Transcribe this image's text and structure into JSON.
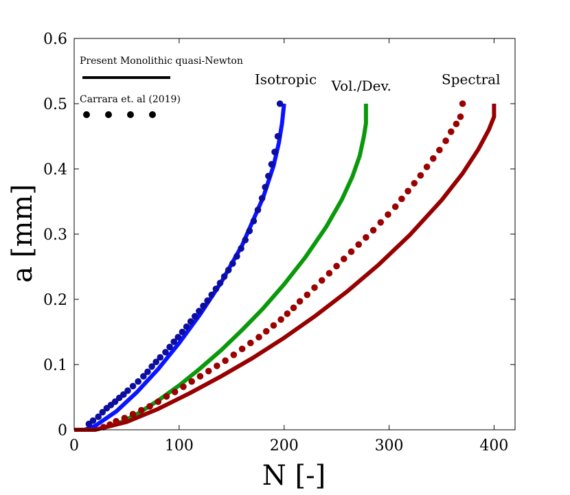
{
  "chart_data": {
    "type": "line",
    "title": "",
    "xlabel": "N [-]",
    "ylabel": "a [mm]",
    "xlim": [
      0,
      420
    ],
    "ylim": [
      0,
      0.6
    ],
    "x_ticks": [
      0,
      100,
      200,
      300,
      400
    ],
    "y_ticks": [
      0,
      0.1,
      0.2,
      0.3,
      0.4,
      0.5,
      0.6
    ],
    "y_tick_labels": [
      "0",
      "0.1",
      "0.2",
      "0.3",
      "0.4",
      "0.5",
      "0.6"
    ],
    "grid": false,
    "legend": {
      "placement": "top-left",
      "entries": [
        {
          "label": "Present Monolithic quasi-Newton",
          "style": "solid line"
        },
        {
          "label": "Carrara et. al (2019)",
          "style": "dots"
        }
      ]
    },
    "annotations": [
      {
        "text": "Isotropic",
        "x": 172,
        "y": 0.53
      },
      {
        "text": "Vol./Dev.",
        "x": 245,
        "y": 0.52
      },
      {
        "text": "Spectral",
        "x": 350,
        "y": 0.53
      }
    ],
    "colors": {
      "isotropic": "#0a14ff",
      "isotropic_dots": "#0d0d9e",
      "voldev": "#0a990a",
      "spectral": "#960000",
      "spectral_dots": "#9a0000"
    },
    "series": [
      {
        "name": "Isotropic (Present Monolithic quasi-Newton)",
        "style": "line",
        "x": [
          0,
          10,
          20,
          40,
          60,
          80,
          100,
          120,
          140,
          160,
          180,
          190,
          195,
          198,
          200
        ],
        "y": [
          0,
          0.0,
          0.006,
          0.028,
          0.058,
          0.093,
          0.133,
          0.177,
          0.226,
          0.283,
          0.356,
          0.405,
          0.44,
          0.47,
          0.5
        ]
      },
      {
        "name": "Isotropic (Carrara et. al (2019))",
        "style": "dots",
        "x": [
          14,
          18,
          23,
          27,
          31,
          35,
          39,
          43,
          47,
          51,
          56,
          61,
          66,
          70,
          74,
          78,
          82,
          87,
          91,
          95,
          99,
          103,
          107,
          111,
          115,
          119,
          123,
          127,
          131,
          135,
          139,
          143,
          147,
          151,
          155,
          159,
          163,
          167,
          171,
          175,
          179,
          182,
          185,
          188,
          191,
          194,
          196
        ],
        "y": [
          0.009,
          0.014,
          0.02,
          0.027,
          0.033,
          0.038,
          0.043,
          0.049,
          0.054,
          0.06,
          0.067,
          0.074,
          0.082,
          0.089,
          0.097,
          0.104,
          0.111,
          0.119,
          0.127,
          0.135,
          0.142,
          0.15,
          0.158,
          0.166,
          0.174,
          0.182,
          0.19,
          0.198,
          0.207,
          0.216,
          0.225,
          0.235,
          0.245,
          0.255,
          0.266,
          0.278,
          0.291,
          0.305,
          0.32,
          0.337,
          0.355,
          0.372,
          0.389,
          0.407,
          0.426,
          0.45,
          0.5
        ]
      },
      {
        "name": "Vol./Dev. (Present Monolithic quasi-Newton)",
        "style": "line",
        "x": [
          0,
          20,
          40,
          60,
          80,
          100,
          120,
          140,
          160,
          180,
          200,
          220,
          240,
          255,
          265,
          272,
          276,
          278,
          278
        ],
        "y": [
          0,
          0.0,
          0.008,
          0.024,
          0.045,
          0.068,
          0.094,
          0.122,
          0.153,
          0.186,
          0.223,
          0.264,
          0.311,
          0.353,
          0.388,
          0.42,
          0.45,
          0.47,
          0.5
        ]
      },
      {
        "name": "Spectral (Present Monolithic quasi-Newton)",
        "style": "line",
        "x": [
          0,
          20,
          50,
          80,
          110,
          140,
          170,
          200,
          230,
          260,
          290,
          320,
          350,
          370,
          385,
          395,
          400,
          400
        ],
        "y": [
          0,
          0.0,
          0.012,
          0.032,
          0.056,
          0.082,
          0.11,
          0.141,
          0.175,
          0.212,
          0.253,
          0.299,
          0.352,
          0.393,
          0.43,
          0.46,
          0.48,
          0.5
        ]
      },
      {
        "name": "Spectral (Carrara et. al (2019))",
        "style": "dots",
        "x": [
          28,
          34,
          40,
          48,
          56,
          64,
          72,
          80,
          88,
          96,
          104,
          112,
          120,
          128,
          136,
          144,
          152,
          160,
          168,
          176,
          183,
          190,
          197,
          203,
          209,
          215,
          222,
          229,
          236,
          243,
          250,
          257,
          264,
          271,
          278,
          285,
          292,
          299,
          306,
          312,
          318,
          324,
          330,
          336,
          342,
          348,
          354,
          359,
          364,
          368,
          370
        ],
        "y": [
          0.004,
          0.008,
          0.013,
          0.018,
          0.024,
          0.03,
          0.036,
          0.043,
          0.051,
          0.058,
          0.066,
          0.074,
          0.082,
          0.09,
          0.098,
          0.106,
          0.115,
          0.124,
          0.133,
          0.142,
          0.151,
          0.16,
          0.169,
          0.178,
          0.187,
          0.197,
          0.207,
          0.218,
          0.229,
          0.24,
          0.251,
          0.262,
          0.273,
          0.284,
          0.295,
          0.306,
          0.318,
          0.33,
          0.342,
          0.354,
          0.366,
          0.378,
          0.39,
          0.403,
          0.416,
          0.429,
          0.443,
          0.457,
          0.469,
          0.48,
          0.5
        ]
      }
    ]
  }
}
